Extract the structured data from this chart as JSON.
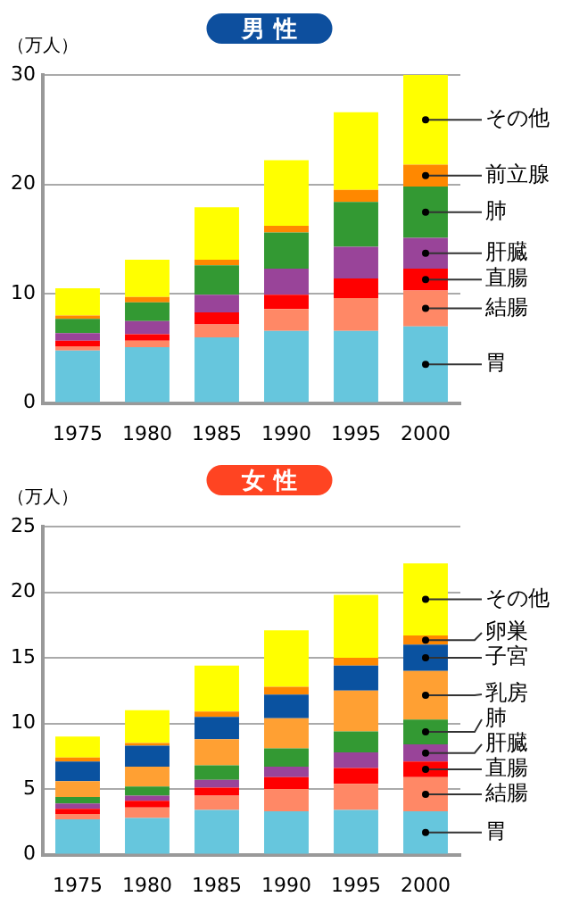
{
  "chart_data": [
    {
      "type": "bar",
      "title": "男 性",
      "ylabel": "（万人）",
      "stacked": true,
      "grid": "y",
      "legend": false,
      "categories": [
        "1975",
        "1980",
        "1985",
        "1990",
        "1995",
        "2000"
      ],
      "ylim": [
        0,
        30
      ],
      "yticks": [
        0,
        10,
        20,
        30
      ],
      "series": [
        {
          "name": "胃",
          "color": "#66c6dd",
          "values": [
            4.8,
            5.1,
            6.0,
            6.6,
            6.6,
            7.0
          ]
        },
        {
          "name": "結腸",
          "color": "#ff8866",
          "values": [
            0.4,
            0.6,
            1.2,
            2.0,
            3.0,
            3.3
          ]
        },
        {
          "name": "直腸",
          "color": "#ff0000",
          "values": [
            0.5,
            0.6,
            1.1,
            1.3,
            1.8,
            2.0
          ]
        },
        {
          "name": "肝臓",
          "color": "#994499",
          "values": [
            0.7,
            1.2,
            1.6,
            2.4,
            2.9,
            2.8
          ]
        },
        {
          "name": "肺",
          "color": "#339933",
          "values": [
            1.3,
            1.7,
            2.7,
            3.3,
            4.1,
            4.7
          ]
        },
        {
          "name": "前立腺",
          "color": "#ff8800",
          "values": [
            0.3,
            0.5,
            0.5,
            0.6,
            1.1,
            2.0
          ]
        },
        {
          "name": "その他",
          "color": "#ffff00",
          "values": [
            2.5,
            3.4,
            4.8,
            6.0,
            7.1,
            8.2
          ]
        }
      ]
    },
    {
      "type": "bar",
      "title": "女 性",
      "ylabel": "（万人）",
      "stacked": true,
      "grid": "y",
      "legend": false,
      "categories": [
        "1975",
        "1980",
        "1985",
        "1990",
        "1995",
        "2000"
      ],
      "ylim": [
        0,
        25
      ],
      "yticks": [
        0,
        5,
        10,
        15,
        20,
        25
      ],
      "series": [
        {
          "name": "胃",
          "color": "#66c6dd",
          "values": [
            2.7,
            2.8,
            3.4,
            3.3,
            3.4,
            3.3
          ]
        },
        {
          "name": "結腸",
          "color": "#ff8866",
          "values": [
            0.4,
            0.8,
            1.1,
            1.7,
            2.0,
            2.6
          ]
        },
        {
          "name": "直腸",
          "color": "#ff0000",
          "values": [
            0.4,
            0.5,
            0.6,
            0.9,
            1.2,
            1.2
          ]
        },
        {
          "name": "肝臓",
          "color": "#994499",
          "values": [
            0.4,
            0.4,
            0.6,
            0.8,
            1.2,
            1.3
          ]
        },
        {
          "name": "肺",
          "color": "#339933",
          "values": [
            0.5,
            0.7,
            1.1,
            1.4,
            1.6,
            1.9
          ]
        },
        {
          "name": "乳房",
          "color": "#ffa033",
          "values": [
            1.2,
            1.5,
            2.0,
            2.3,
            3.1,
            3.7
          ]
        },
        {
          "name": "子宮",
          "color": "#0a52a0",
          "values": [
            1.5,
            1.6,
            1.7,
            1.8,
            1.9,
            2.0
          ]
        },
        {
          "name": "卵巣",
          "color": "#ff8800",
          "values": [
            0.3,
            0.2,
            0.4,
            0.6,
            0.6,
            0.7
          ]
        },
        {
          "name": "その他",
          "color": "#ffff00",
          "values": [
            1.6,
            2.5,
            3.5,
            4.3,
            4.8,
            5.5
          ]
        }
      ]
    }
  ]
}
